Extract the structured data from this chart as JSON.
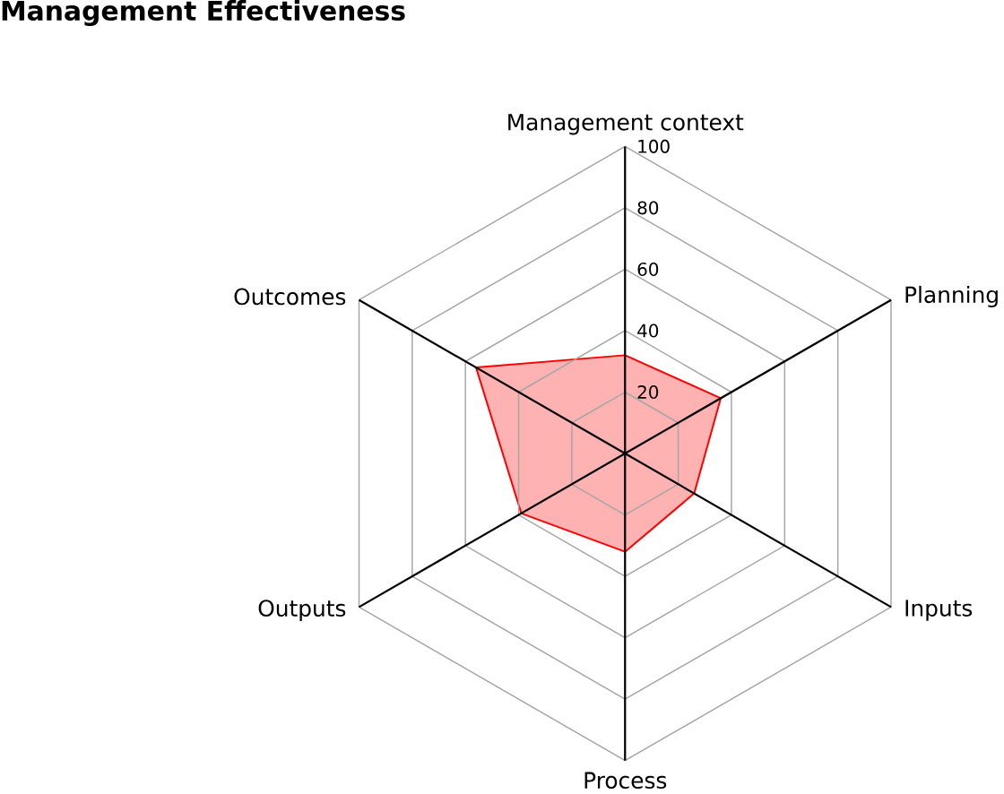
{
  "chart_data": {
    "type": "radar",
    "title": "Management Effectiveness",
    "categories": [
      "Management context",
      "Planning",
      "Inputs",
      "Process",
      "Outputs",
      "Outcomes"
    ],
    "series": [
      {
        "color": "#ff0000",
        "values": [
          32,
          36,
          26,
          32,
          39,
          56
        ]
      }
    ],
    "ylim": [
      0,
      100
    ],
    "yticks": [
      20,
      40,
      60,
      80,
      100
    ],
    "grid": true
  }
}
